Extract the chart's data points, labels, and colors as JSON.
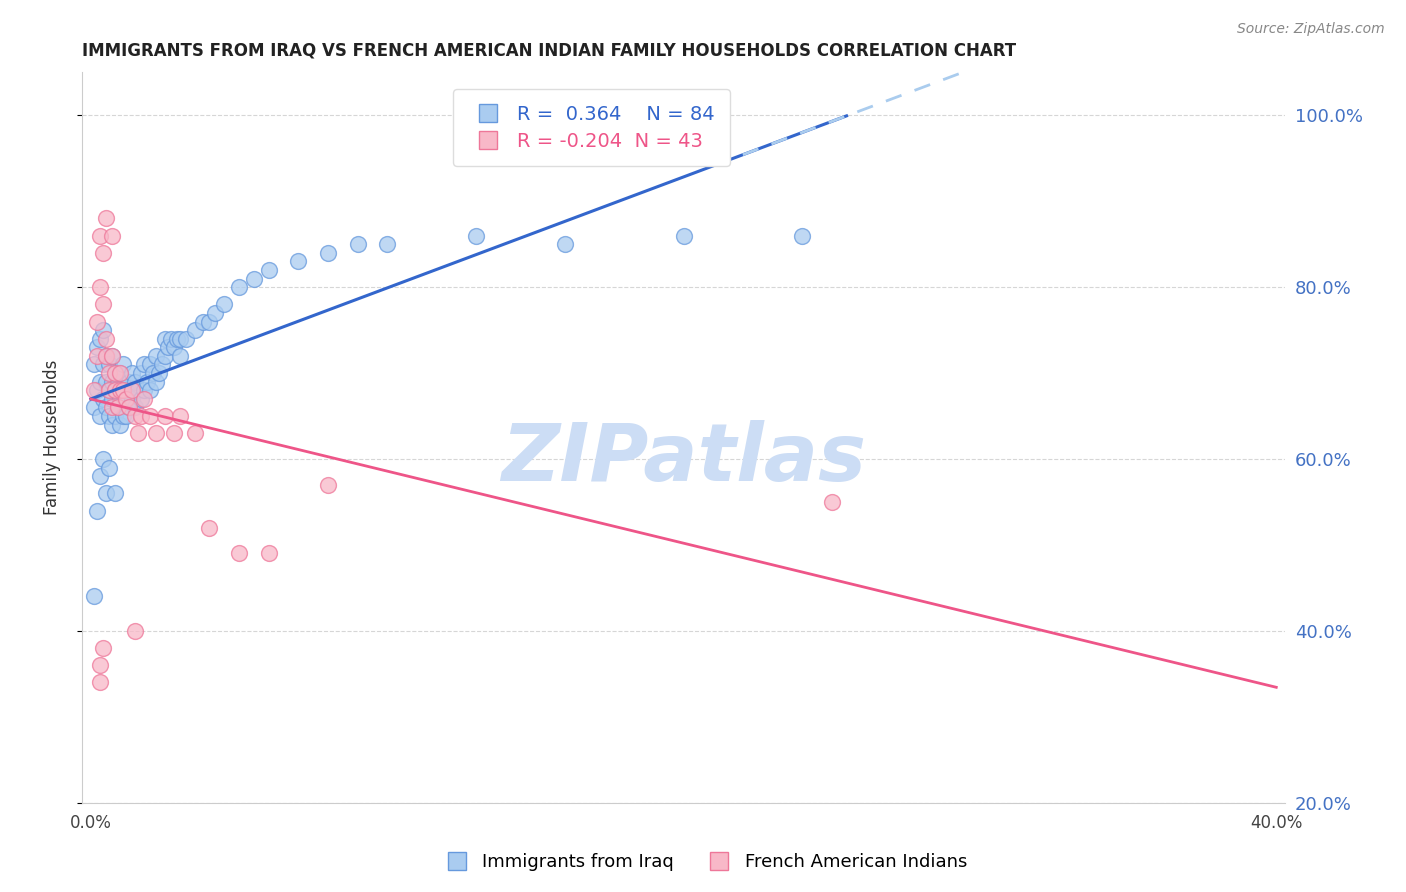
{
  "title": "IMMIGRANTS FROM IRAQ VS FRENCH AMERICAN INDIAN FAMILY HOUSEHOLDS CORRELATION CHART",
  "source": "Source: ZipAtlas.com",
  "ylabel": "Family Households",
  "xlim": [
    0.0,
    0.4
  ],
  "ylim": [
    0.2,
    1.05
  ],
  "blue_R": 0.364,
  "blue_N": 84,
  "pink_R": -0.204,
  "pink_N": 43,
  "blue_color": "#aaccf0",
  "pink_color": "#f8b8c8",
  "blue_edge_color": "#6699dd",
  "pink_edge_color": "#ee7799",
  "blue_line_color": "#3366cc",
  "pink_line_color": "#ee5588",
  "dashed_line_color": "#aaccee",
  "grid_color": "#cccccc",
  "axis_label_color": "#4472c4",
  "title_color": "#222222",
  "watermark_color": "#ccddf5",
  "blue_x": [
    0.001,
    0.001,
    0.002,
    0.002,
    0.003,
    0.003,
    0.003,
    0.004,
    0.004,
    0.004,
    0.005,
    0.005,
    0.005,
    0.006,
    0.006,
    0.006,
    0.007,
    0.007,
    0.007,
    0.007,
    0.008,
    0.008,
    0.008,
    0.009,
    0.009,
    0.01,
    0.01,
    0.01,
    0.011,
    0.011,
    0.011,
    0.012,
    0.012,
    0.013,
    0.013,
    0.014,
    0.014,
    0.015,
    0.015,
    0.016,
    0.017,
    0.017,
    0.018,
    0.018,
    0.019,
    0.02,
    0.02,
    0.021,
    0.022,
    0.022,
    0.023,
    0.024,
    0.025,
    0.025,
    0.026,
    0.027,
    0.028,
    0.029,
    0.03,
    0.03,
    0.032,
    0.035,
    0.038,
    0.04,
    0.042,
    0.045,
    0.05,
    0.055,
    0.06,
    0.07,
    0.08,
    0.09,
    0.1,
    0.13,
    0.16,
    0.2,
    0.24,
    0.001,
    0.002,
    0.003,
    0.004,
    0.005,
    0.006,
    0.008
  ],
  "blue_y": [
    0.66,
    0.71,
    0.68,
    0.73,
    0.65,
    0.69,
    0.74,
    0.67,
    0.71,
    0.75,
    0.66,
    0.69,
    0.72,
    0.65,
    0.68,
    0.71,
    0.64,
    0.67,
    0.69,
    0.72,
    0.65,
    0.68,
    0.7,
    0.66,
    0.69,
    0.64,
    0.67,
    0.7,
    0.65,
    0.68,
    0.71,
    0.65,
    0.68,
    0.66,
    0.69,
    0.67,
    0.7,
    0.66,
    0.69,
    0.68,
    0.67,
    0.7,
    0.68,
    0.71,
    0.69,
    0.68,
    0.71,
    0.7,
    0.69,
    0.72,
    0.7,
    0.71,
    0.72,
    0.74,
    0.73,
    0.74,
    0.73,
    0.74,
    0.72,
    0.74,
    0.74,
    0.75,
    0.76,
    0.76,
    0.77,
    0.78,
    0.8,
    0.81,
    0.82,
    0.83,
    0.84,
    0.85,
    0.85,
    0.86,
    0.85,
    0.86,
    0.86,
    0.44,
    0.54,
    0.58,
    0.6,
    0.56,
    0.59,
    0.56
  ],
  "pink_x": [
    0.001,
    0.002,
    0.002,
    0.003,
    0.003,
    0.004,
    0.004,
    0.005,
    0.005,
    0.006,
    0.006,
    0.007,
    0.007,
    0.008,
    0.008,
    0.009,
    0.01,
    0.01,
    0.011,
    0.012,
    0.013,
    0.014,
    0.015,
    0.016,
    0.017,
    0.018,
    0.02,
    0.022,
    0.025,
    0.028,
    0.03,
    0.035,
    0.04,
    0.05,
    0.06,
    0.08,
    0.003,
    0.003,
    0.004,
    0.25,
    0.005,
    0.007,
    0.015
  ],
  "pink_y": [
    0.68,
    0.72,
    0.76,
    0.8,
    0.86,
    0.84,
    0.78,
    0.74,
    0.72,
    0.7,
    0.68,
    0.72,
    0.66,
    0.68,
    0.7,
    0.66,
    0.68,
    0.7,
    0.68,
    0.67,
    0.66,
    0.68,
    0.65,
    0.63,
    0.65,
    0.67,
    0.65,
    0.63,
    0.65,
    0.63,
    0.65,
    0.63,
    0.52,
    0.49,
    0.49,
    0.57,
    0.36,
    0.34,
    0.38,
    0.55,
    0.88,
    0.86,
    0.4
  ]
}
